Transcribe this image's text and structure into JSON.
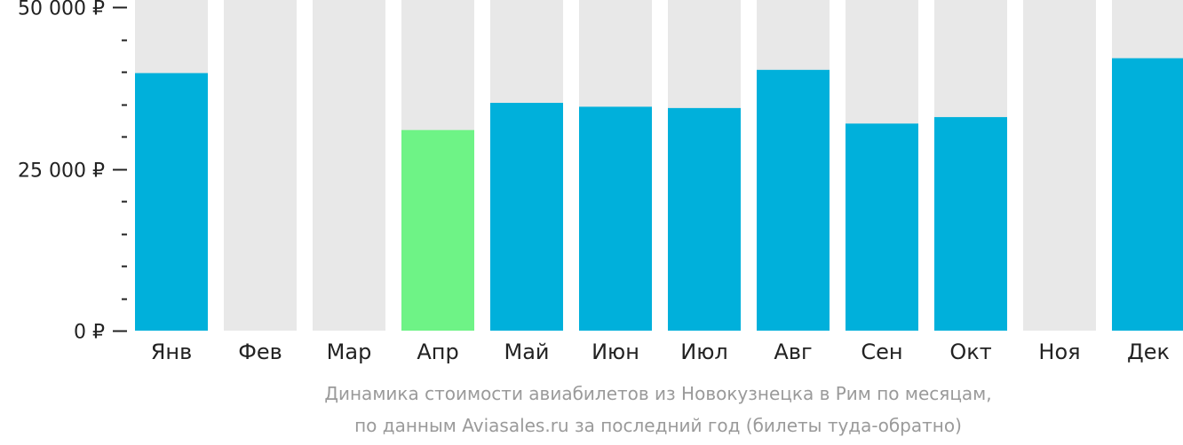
{
  "chart_data": {
    "type": "bar",
    "categories": [
      "Янв",
      "Фев",
      "Мар",
      "Апр",
      "Май",
      "Июн",
      "Июл",
      "Авг",
      "Сен",
      "Окт",
      "Ноя",
      "Дек"
    ],
    "values": [
      39800,
      null,
      null,
      31000,
      35200,
      34600,
      34400,
      40300,
      32000,
      33000,
      null,
      42100
    ],
    "highlight_category": "Апр",
    "ylim": [
      0,
      50000
    ],
    "yticks": [
      {
        "value": 0,
        "label": "0 ₽"
      },
      {
        "value": 25000,
        "label": "25 000 ₽"
      },
      {
        "value": 50000,
        "label": "50 000 ₽"
      }
    ],
    "minor_tick_step": 5000,
    "colors": {
      "bar": "#00b0db",
      "highlight": "#6ef386",
      "background_bar": "#e8e8e8",
      "axis": "#222222"
    }
  },
  "caption": {
    "line1": "Динамика стоимости авиабилетов из Новокузнецка в Рим по месяцам,",
    "line2": "по данным Aviasales.ru за последний год (билеты туда-обратно)"
  }
}
